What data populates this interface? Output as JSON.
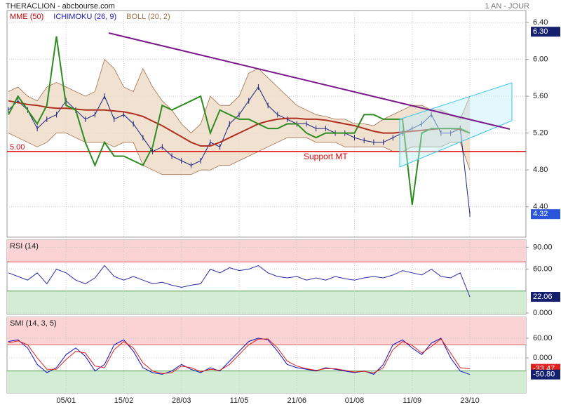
{
  "header": {
    "title": "THERACLION - abcbourse.com",
    "period": "1 AN - JOUR"
  },
  "chart_data": [
    {
      "type": "line",
      "categories": [
        null,
        null,
        null,
        null,
        null,
        null,
        "05/01",
        null,
        null,
        null,
        null,
        null,
        "15/02",
        null,
        null,
        null,
        null,
        null,
        "28/03",
        null,
        null,
        null,
        null,
        null,
        "11/05",
        null,
        null,
        null,
        null,
        null,
        "21/06",
        null,
        null,
        null,
        null,
        null,
        "01/08",
        null,
        null,
        null,
        null,
        null,
        "11/09",
        null,
        null,
        null,
        null,
        null,
        "23/10"
      ],
      "values": [
        5.45,
        5.55,
        5.45,
        5.25,
        5.35,
        5.4,
        5.55,
        5.45,
        5.35,
        5.4,
        5.6,
        5.35,
        5.4,
        5.3,
        5.15,
        5.0,
        5.05,
        4.95,
        4.9,
        4.85,
        4.9,
        5.1,
        5.05,
        5.3,
        5.4,
        5.55,
        5.7,
        5.5,
        5.4,
        5.35,
        5.3,
        5.3,
        5.25,
        5.25,
        5.2,
        5.2,
        5.15,
        5.12,
        5.1,
        5.1,
        5.15,
        5.2,
        5.25,
        5.3,
        5.4,
        5.2,
        5.2,
        5.25,
        4.32
      ],
      "color": "#1a237e",
      "series": [
        {
          "name": "MME (50)",
          "color": "#b03020",
          "label_color": "#c00000",
          "values": [
            5.55,
            5.53,
            5.51,
            5.5,
            5.48,
            5.47,
            5.47,
            5.46,
            5.45,
            5.45,
            5.45,
            5.44,
            5.43,
            5.41,
            5.38,
            5.33,
            5.28,
            5.22,
            5.16,
            5.1,
            5.06,
            5.06,
            5.1,
            5.15,
            5.2,
            5.25,
            5.3,
            5.33,
            5.35,
            5.36,
            5.36,
            5.35,
            5.35,
            5.34,
            5.32,
            5.3,
            5.28,
            5.25,
            5.22,
            5.2,
            5.2,
            5.21,
            5.22,
            5.23,
            5.24,
            5.25,
            5.25,
            5.24,
            5.2
          ]
        },
        {
          "name": "ICHIMOKU (26, 9)",
          "color": "#2e8b20",
          "label_color": "#1a1ab0",
          "values": [
            5.4,
            5.6,
            5.45,
            5.3,
            5.5,
            6.25,
            5.5,
            5.45,
            5.1,
            4.85,
            5.1,
            4.95,
            4.95,
            4.9,
            4.85,
            5.05,
            5.5,
            5.45,
            5.5,
            5.55,
            5.6,
            5.2,
            5.45,
            5.4,
            5.35,
            5.35,
            5.3,
            5.25,
            5.25,
            5.3,
            5.3,
            5.2,
            5.15,
            5.2,
            5.2,
            5.2,
            5.2,
            5.4,
            5.4,
            5.35,
            5.35,
            5.35,
            4.42,
            5.2,
            5.25,
            5.25,
            5.25,
            5.25,
            5.2
          ]
        }
      ],
      "boll": {
        "name": "BOLL (20, 2)",
        "color": "#a0704a",
        "fill": "#ecd9c6",
        "upper": [
          5.65,
          5.7,
          5.6,
          5.55,
          5.7,
          5.75,
          5.7,
          5.65,
          5.6,
          5.65,
          6.0,
          5.9,
          5.7,
          5.65,
          5.9,
          5.7,
          5.55,
          5.45,
          5.3,
          5.2,
          5.3,
          5.6,
          5.5,
          5.5,
          5.6,
          5.85,
          5.9,
          5.8,
          5.7,
          5.6,
          5.5,
          5.45,
          5.4,
          5.38,
          5.35,
          5.35,
          5.3,
          5.3,
          5.28,
          5.35,
          5.4,
          5.45,
          5.5,
          5.5,
          5.45,
          5.45,
          5.4,
          5.35,
          5.6
        ],
        "lower": [
          5.2,
          5.15,
          5.1,
          5.05,
          5.1,
          5.2,
          5.2,
          5.15,
          5.1,
          5.1,
          5.1,
          5.05,
          5.1,
          5.1,
          4.85,
          4.8,
          4.75,
          4.75,
          4.75,
          4.75,
          4.8,
          4.8,
          4.85,
          4.85,
          4.9,
          4.95,
          5.0,
          5.05,
          5.1,
          5.15,
          5.15,
          5.15,
          5.1,
          5.1,
          5.1,
          5.05,
          5.05,
          5.05,
          5.05,
          5.05,
          5.0,
          5.0,
          5.05,
          5.05,
          5.05,
          5.05,
          5.1,
          5.1,
          4.8
        ]
      },
      "ylim": [
        4.07,
        6.53
      ],
      "yticks": [
        {
          "value": 6.4,
          "label": "6.40"
        },
        {
          "value": 6.0,
          "label": "6.00"
        },
        {
          "value": 5.6,
          "label": "5.60"
        },
        {
          "value": 5.2,
          "label": "5.20"
        },
        {
          "value": 4.8,
          "label": "4.80"
        },
        {
          "value": 4.4,
          "label": "4.40"
        }
      ],
      "grid": true,
      "high_badge": {
        "value": 6.3,
        "label": "6.30"
      },
      "support": {
        "value": 5.0,
        "label": "5.00",
        "text": "Support MT",
        "color": "#e00000"
      }
    },
    {
      "type": "line",
      "title": "RSI (14)",
      "series": [
        {
          "color": "#2a2aa8",
          "values": [
            55,
            50,
            45,
            55,
            40,
            60,
            55,
            45,
            40,
            48,
            65,
            50,
            45,
            50,
            45,
            40,
            42,
            38,
            35,
            38,
            40,
            60,
            55,
            62,
            58,
            60,
            65,
            55,
            50,
            48,
            50,
            45,
            48,
            45,
            50,
            47,
            45,
            48,
            50,
            48,
            52,
            58,
            55,
            52,
            60,
            50,
            48,
            55,
            22.06
          ]
        }
      ],
      "ylim": [
        -2,
        100
      ],
      "yticks": [
        {
          "value": 90,
          "label": "90.00"
        },
        {
          "value": 60,
          "label": "60.00"
        },
        {
          "value": 0,
          "label": "0.000"
        }
      ],
      "grid": true,
      "overbought": 70,
      "oversold": 30,
      "overbought_color": "#fad4d4",
      "oversold_color": "#d4ebd4"
    },
    {
      "type": "line",
      "title": "SMI (14, 3, 5)",
      "series": [
        {
          "color": "#1010c0",
          "values": [
            50,
            55,
            30,
            -20,
            -45,
            -30,
            10,
            30,
            5,
            -40,
            -20,
            40,
            55,
            20,
            -30,
            -45,
            -50,
            -40,
            -20,
            -35,
            -45,
            -30,
            -40,
            -10,
            20,
            50,
            60,
            55,
            20,
            -20,
            -30,
            -35,
            -40,
            -30,
            -35,
            -40,
            -45,
            -40,
            -50,
            -20,
            40,
            55,
            30,
            10,
            45,
            60,
            0,
            -40,
            -50.8
          ],
          "value_labels": [
            null,
            null,
            null,
            null,
            null,
            null,
            null,
            null,
            null,
            null,
            null,
            null,
            null,
            null,
            null,
            null,
            null,
            null,
            null,
            null,
            null,
            null,
            null,
            null,
            null,
            null,
            null,
            null,
            null,
            null,
            null,
            null,
            null,
            null,
            null,
            null,
            null,
            null,
            null,
            null,
            null,
            null,
            null,
            null,
            null,
            null,
            null,
            null,
            "-50.80"
          ]
        },
        {
          "color": "#e02020",
          "values": [
            45,
            52,
            40,
            0,
            -35,
            -35,
            -5,
            20,
            15,
            -25,
            -30,
            25,
            50,
            30,
            -15,
            -40,
            -48,
            -45,
            -25,
            -30,
            -42,
            -35,
            -38,
            -20,
            10,
            40,
            57,
            58,
            30,
            -10,
            -25,
            -33,
            -38,
            -33,
            -33,
            -38,
            -43,
            -41,
            -46,
            -30,
            25,
            50,
            38,
            15,
            35,
            58,
            15,
            -30,
            -33.47
          ]
        }
      ],
      "ylim": [
        -107,
        124
      ],
      "yticks": [
        {
          "value": 60,
          "label": "60.00"
        },
        {
          "value": 0,
          "label": "0.000"
        }
      ],
      "grid": true,
      "overbought": 40,
      "oversold": -40,
      "overbought_color": "#fad4d4",
      "oversold_color": "#d4ebd4"
    }
  ]
}
